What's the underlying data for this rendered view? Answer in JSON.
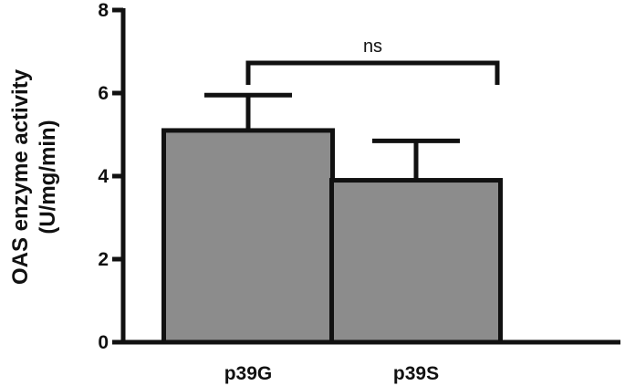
{
  "chart_data": {
    "type": "bar",
    "categories": [
      "p39G",
      "p39S"
    ],
    "values": [
      5.1,
      3.9
    ],
    "errors": [
      0.85,
      0.95
    ],
    "ylabel_line1": "OAS enzyme activity",
    "ylabel_line2": "(U/mg/min)",
    "ylim": [
      0,
      8
    ],
    "yticks": [
      "0",
      "2",
      "4",
      "6",
      "8"
    ],
    "bar_color": "#8c8c8c",
    "comparison": {
      "between": [
        "p39G",
        "p39S"
      ],
      "label": "ns"
    },
    "grid": false,
    "legend": "none"
  }
}
